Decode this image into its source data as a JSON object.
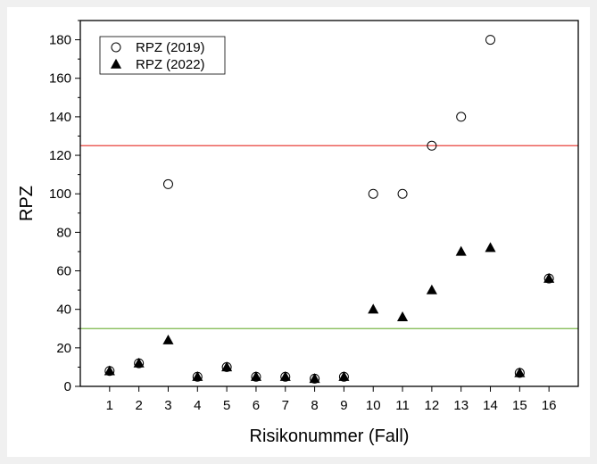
{
  "chart_data": {
    "type": "scatter",
    "xlabel": "Risikonummer (Fall)",
    "ylabel": "RPZ",
    "x": [
      1,
      2,
      3,
      4,
      5,
      6,
      7,
      8,
      9,
      10,
      11,
      12,
      13,
      14,
      15,
      16
    ],
    "xlim": [
      0,
      17
    ],
    "ylim": [
      0,
      190
    ],
    "yticks": [
      0,
      20,
      40,
      60,
      80,
      100,
      120,
      140,
      160,
      180
    ],
    "grid": false,
    "legend_position": "top-left",
    "series": [
      {
        "name": "RPZ (2019)",
        "marker": "circle-open",
        "color": "#000000",
        "values": [
          8,
          12,
          105,
          5,
          10,
          5,
          5,
          4,
          5,
          100,
          100,
          125,
          140,
          180,
          7,
          56
        ]
      },
      {
        "name": "RPZ (2022)",
        "marker": "triangle-filled",
        "color": "#000000",
        "values": [
          8,
          12,
          24,
          5,
          10,
          5,
          5,
          4,
          5,
          40,
          36,
          50,
          70,
          72,
          7,
          56
        ]
      }
    ],
    "reference_lines": [
      {
        "y": 125,
        "color": "#e8403a"
      },
      {
        "y": 30,
        "color": "#7ab648"
      }
    ]
  }
}
